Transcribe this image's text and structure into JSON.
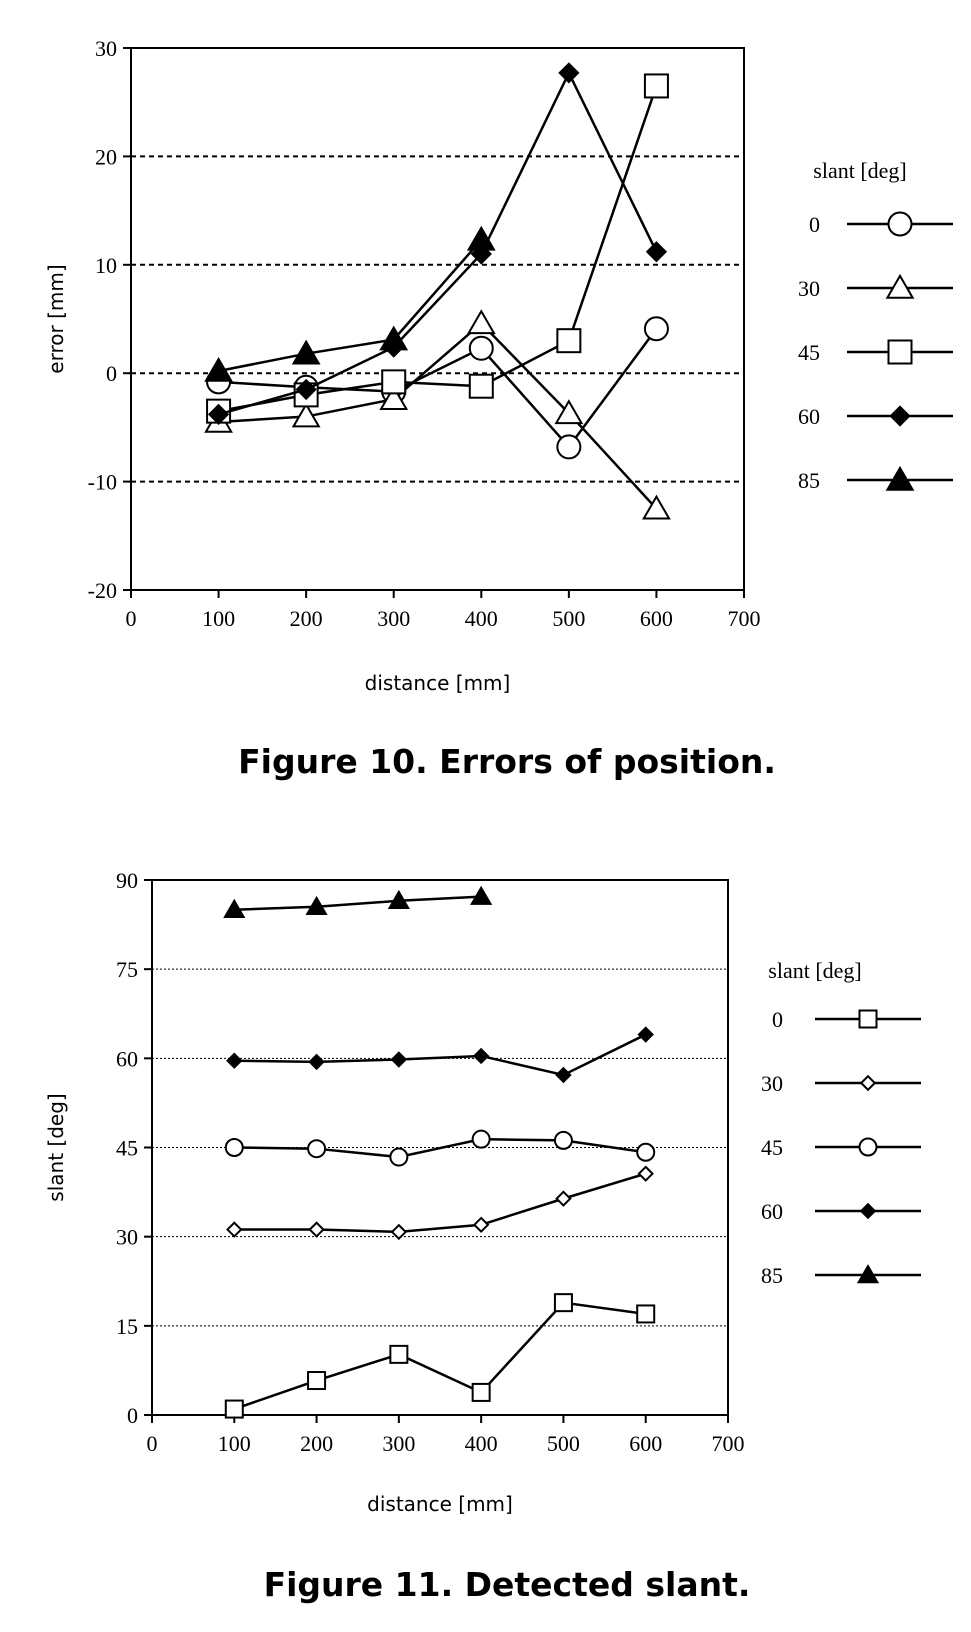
{
  "chart_data": [
    {
      "type": "line",
      "caption": "Figure 10. Errors of position.",
      "xlabel": "distance [mm]",
      "ylabel": "error [mm]",
      "xlim": [
        0,
        700
      ],
      "ylim": [
        -20,
        30
      ],
      "xticks": [
        "0",
        "100",
        "200",
        "300",
        "400",
        "500",
        "600",
        "700"
      ],
      "yticks": [
        "-20",
        "-10",
        "0",
        "10",
        "20",
        "30"
      ],
      "grid_y": [
        -10,
        0,
        10,
        20
      ],
      "legend_title": "slant [deg]",
      "legend_position": "right",
      "x": [
        100,
        200,
        300,
        400,
        500,
        600
      ],
      "series": [
        {
          "name": "0",
          "marker": "circle-open",
          "values": [
            -0.8,
            -1.3,
            -1.7,
            2.3,
            -6.8,
            4.1
          ]
        },
        {
          "name": "30",
          "marker": "triangle-open",
          "values": [
            -4.5,
            -4.0,
            -2.4,
            4.6,
            -3.7,
            -12.5
          ]
        },
        {
          "name": "45",
          "marker": "square-open",
          "values": [
            -3.5,
            -2.0,
            -0.8,
            -1.2,
            3.0,
            26.5
          ]
        },
        {
          "name": "60",
          "marker": "diamond-filled",
          "values": [
            -3.8,
            -1.5,
            2.4,
            11.0,
            27.7,
            11.2
          ]
        },
        {
          "name": "85",
          "marker": "triangle-filled",
          "values": [
            0.2,
            1.8,
            3.1,
            12.3,
            null,
            null
          ]
        }
      ]
    },
    {
      "type": "line",
      "caption": "Figure 11. Detected slant.",
      "xlabel": "distance [mm]",
      "ylabel": "slant [deg]",
      "xlim": [
        0,
        700
      ],
      "ylim": [
        0,
        90
      ],
      "xticks": [
        "0",
        "100",
        "200",
        "300",
        "400",
        "500",
        "600",
        "700"
      ],
      "yticks": [
        "0",
        "15",
        "30",
        "45",
        "60",
        "75",
        "90"
      ],
      "grid_y": [
        15,
        30,
        45,
        60,
        75
      ],
      "legend_title": "slant [deg]",
      "legend_position": "right",
      "x": [
        100,
        200,
        300,
        400,
        500,
        600
      ],
      "series": [
        {
          "name": "0",
          "marker": "square-open",
          "values": [
            1.0,
            5.8,
            10.2,
            3.8,
            18.9,
            17.0
          ]
        },
        {
          "name": "30",
          "marker": "diamond-open",
          "values": [
            31.2,
            31.2,
            30.8,
            32.0,
            36.4,
            40.6
          ]
        },
        {
          "name": "45",
          "marker": "circle-open",
          "values": [
            45.0,
            44.8,
            43.4,
            46.4,
            46.2,
            44.2
          ]
        },
        {
          "name": "60",
          "marker": "diamond-filled",
          "values": [
            59.6,
            59.4,
            59.8,
            60.4,
            57.2,
            64.0
          ]
        },
        {
          "name": "85",
          "marker": "triangle-filled",
          "values": [
            85.0,
            85.5,
            86.5,
            87.2,
            null,
            null
          ]
        }
      ]
    }
  ]
}
